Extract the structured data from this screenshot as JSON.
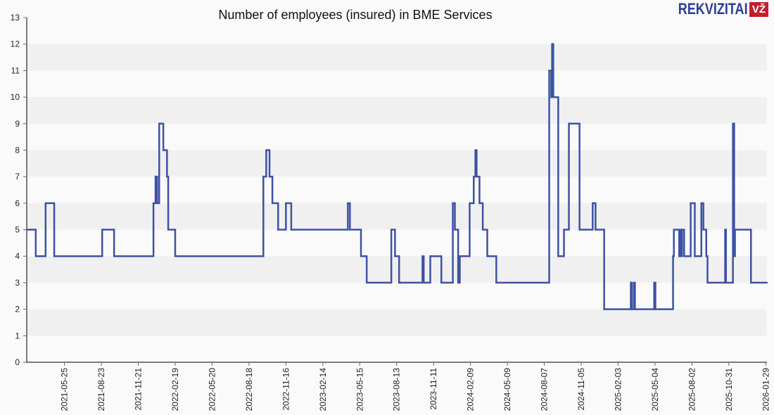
{
  "chart_data": {
    "type": "line",
    "step": "after",
    "title": "Number of employees (insured) in BME Services",
    "xlabel": "",
    "ylabel": "",
    "xlim": [
      "2021-02-22",
      "2026-02-01"
    ],
    "ylim": [
      0,
      13
    ],
    "yticks": [
      0,
      1,
      2,
      3,
      4,
      5,
      6,
      7,
      8,
      9,
      10,
      11,
      12,
      13
    ],
    "xticks": [
      "2021-05-25",
      "2021-08-23",
      "2021-11-21",
      "2022-02-19",
      "2022-05-20",
      "2022-08-18",
      "2022-11-16",
      "2023-02-14",
      "2023-05-15",
      "2023-08-13",
      "2023-11-11",
      "2024-02-09",
      "2024-05-09",
      "2024-08-07",
      "2024-11-05",
      "2025-02-03",
      "2025-05-04",
      "2025-08-02",
      "2025-10-31",
      "2026-01-29"
    ],
    "grid": "alternating horizontal bands",
    "line_color": "#3d52a3",
    "band_color": "#f0f0f0",
    "background": "#fafafa",
    "series": [
      {
        "points": [
          [
            "2021-02-22",
            5
          ],
          [
            "2021-03-16",
            4
          ],
          [
            "2021-04-09",
            6
          ],
          [
            "2021-04-30",
            4
          ],
          [
            "2021-08-25",
            5
          ],
          [
            "2021-09-23",
            4
          ],
          [
            "2021-12-28",
            6
          ],
          [
            "2022-01-02",
            7
          ],
          [
            "2022-01-06",
            6
          ],
          [
            "2022-01-11",
            9
          ],
          [
            "2022-01-21",
            8
          ],
          [
            "2022-01-30",
            7
          ],
          [
            "2022-02-02",
            5
          ],
          [
            "2022-02-19",
            4
          ],
          [
            "2022-09-22",
            7
          ],
          [
            "2022-09-29",
            8
          ],
          [
            "2022-10-07",
            7
          ],
          [
            "2022-10-14",
            6
          ],
          [
            "2022-10-28",
            5
          ],
          [
            "2022-11-16",
            6
          ],
          [
            "2022-11-29",
            5
          ],
          [
            "2023-04-16",
            6
          ],
          [
            "2023-04-21",
            5
          ],
          [
            "2023-05-18",
            4
          ],
          [
            "2023-06-01",
            3
          ],
          [
            "2023-07-31",
            5
          ],
          [
            "2023-08-09",
            4
          ],
          [
            "2023-08-19",
            3
          ],
          [
            "2023-10-15",
            4
          ],
          [
            "2023-10-18",
            3
          ],
          [
            "2023-11-03",
            4
          ],
          [
            "2023-11-30",
            3
          ],
          [
            "2023-12-28",
            6
          ],
          [
            "2024-01-02",
            5
          ],
          [
            "2024-01-10",
            3
          ],
          [
            "2024-01-14",
            4
          ],
          [
            "2024-02-07",
            6
          ],
          [
            "2024-02-17",
            7
          ],
          [
            "2024-02-21",
            8
          ],
          [
            "2024-02-24",
            7
          ],
          [
            "2024-03-02",
            6
          ],
          [
            "2024-03-10",
            5
          ],
          [
            "2024-03-21",
            4
          ],
          [
            "2024-04-12",
            3
          ],
          [
            "2024-08-19",
            11
          ],
          [
            "2024-08-24",
            10
          ],
          [
            "2024-08-26",
            12
          ],
          [
            "2024-08-29",
            10
          ],
          [
            "2024-09-10",
            4
          ],
          [
            "2024-09-24",
            5
          ],
          [
            "2024-10-06",
            9
          ],
          [
            "2024-11-01",
            5
          ],
          [
            "2024-12-03",
            6
          ],
          [
            "2024-12-10",
            5
          ],
          [
            "2024-12-31",
            2
          ],
          [
            "2025-03-06",
            3
          ],
          [
            "2025-03-09",
            2
          ],
          [
            "2025-03-14",
            3
          ],
          [
            "2025-03-16",
            2
          ],
          [
            "2025-05-02",
            3
          ],
          [
            "2025-05-05",
            2
          ],
          [
            "2025-06-17",
            4
          ],
          [
            "2025-06-19",
            5
          ],
          [
            "2025-07-02",
            4
          ],
          [
            "2025-07-06",
            5
          ],
          [
            "2025-07-08",
            4
          ],
          [
            "2025-07-09",
            5
          ],
          [
            "2025-07-14",
            4
          ],
          [
            "2025-07-30",
            6
          ],
          [
            "2025-08-09",
            4
          ],
          [
            "2025-08-25",
            6
          ],
          [
            "2025-08-30",
            5
          ],
          [
            "2025-09-06",
            4
          ],
          [
            "2025-09-09",
            3
          ],
          [
            "2025-10-22",
            5
          ],
          [
            "2025-10-24",
            3
          ],
          [
            "2025-11-10",
            9
          ],
          [
            "2025-11-13",
            4
          ],
          [
            "2025-11-15",
            5
          ],
          [
            "2025-12-24",
            3
          ],
          [
            "2026-02-01",
            3
          ]
        ]
      }
    ]
  },
  "logo": {
    "text": "REKVIZITAI",
    "badge": "VŽ"
  }
}
